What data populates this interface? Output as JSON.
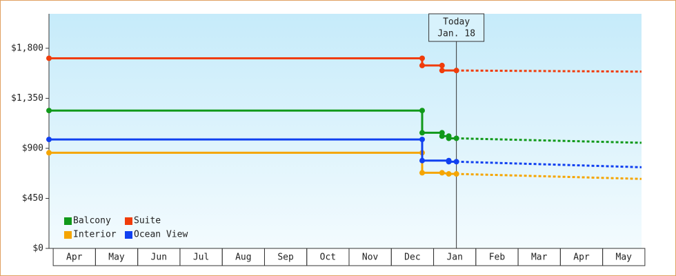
{
  "chart_data": {
    "type": "line",
    "xlim": [
      -0.1,
      13.92
    ],
    "xticks": [
      {
        "value": 0.5,
        "label": "Apr"
      },
      {
        "value": 1.5,
        "label": "May"
      },
      {
        "value": 2.5,
        "label": "Jun"
      },
      {
        "value": 3.5,
        "label": "Jul"
      },
      {
        "value": 4.5,
        "label": "Aug"
      },
      {
        "value": 5.5,
        "label": "Sep"
      },
      {
        "value": 6.5,
        "label": "Oct"
      },
      {
        "value": 7.5,
        "label": "Nov"
      },
      {
        "value": 8.5,
        "label": "Dec"
      },
      {
        "value": 9.5,
        "label": "Jan"
      },
      {
        "value": 10.5,
        "label": "Feb"
      },
      {
        "value": 11.5,
        "label": "Mar"
      },
      {
        "value": 12.5,
        "label": "Apr"
      },
      {
        "value": 13.5,
        "label": "May"
      }
    ],
    "ylim": [
      0,
      2110
    ],
    "yticks": [
      {
        "value": 0,
        "label": "$0"
      },
      {
        "value": 450,
        "label": "$450"
      },
      {
        "value": 900,
        "label": "$900"
      },
      {
        "value": 1350,
        "label": "$1,350"
      },
      {
        "value": 1800,
        "label": "$1,800"
      }
    ],
    "annotation": {
      "x": 9.54,
      "lines": [
        "Today",
        "Jan. 18"
      ]
    },
    "series": [
      {
        "name": "Balcony",
        "color": "#11991a",
        "x": [
          -0.1,
          8.73,
          8.73,
          9.2,
          9.2,
          9.36,
          9.36,
          9.54
        ],
        "values": [
          1240,
          1240,
          1040,
          1040,
          1010,
          1010,
          990,
          990
        ],
        "forecast": {
          "x": [
            9.54,
            13.92
          ],
          "values": [
            990,
            950
          ]
        }
      },
      {
        "name": "Suite",
        "color": "#f03c0a",
        "x": [
          -0.1,
          8.73,
          8.73,
          9.2,
          9.2,
          9.54
        ],
        "values": [
          1710,
          1710,
          1645,
          1645,
          1600,
          1600
        ],
        "forecast": {
          "x": [
            9.54,
            13.92
          ],
          "values": [
            1600,
            1590
          ]
        }
      },
      {
        "name": "Interior",
        "color": "#f5a500",
        "x": [
          -0.1,
          8.73,
          8.73,
          9.2,
          9.36,
          9.54
        ],
        "values": [
          860,
          860,
          680,
          680,
          670,
          670
        ],
        "forecast": {
          "x": [
            9.54,
            13.92
          ],
          "values": [
            670,
            625
          ]
        }
      },
      {
        "name": "Ocean View",
        "color": "#1040f0",
        "x": [
          -0.1,
          8.73,
          8.73,
          9.36,
          9.36,
          9.54
        ],
        "values": [
          980,
          980,
          790,
          790,
          780,
          780
        ],
        "forecast": {
          "x": [
            9.54,
            13.92
          ],
          "values": [
            780,
            730
          ]
        }
      }
    ]
  }
}
